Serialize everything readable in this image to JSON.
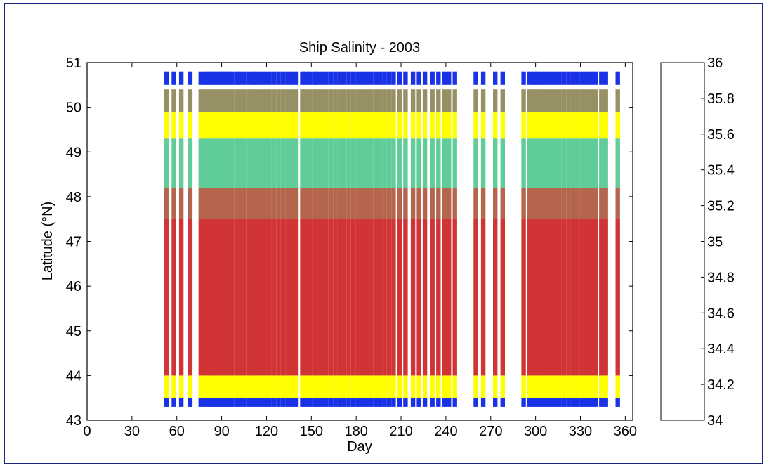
{
  "chart_data": {
    "type": "heatmap",
    "title": "Ship Salinity - 2003",
    "xlabel": "Day",
    "ylabel": "Latitude (°N)",
    "xlim": [
      0,
      365
    ],
    "ylim": [
      43,
      51
    ],
    "x_ticks": [
      "0",
      "30",
      "60",
      "90",
      "120",
      "150",
      "180",
      "210",
      "240",
      "270",
      "300",
      "330",
      "360"
    ],
    "y_ticks": [
      "43",
      "44",
      "45",
      "46",
      "47",
      "48",
      "49",
      "50",
      "51"
    ],
    "colorbar": {
      "range": [
        34,
        36
      ],
      "ticks": [
        "34",
        "34.2",
        "34.4",
        "34.6",
        "34.8",
        "35",
        "35.2",
        "35.4",
        "35.6",
        "35.8",
        "36"
      ],
      "colors": [
        "#0a14f0",
        "#1a32e6",
        "#3066d0",
        "#4a98b0",
        "#60cc98",
        "#ffff00",
        "#979064",
        "#b4654c",
        "#d03434",
        "#ff0000"
      ]
    },
    "transect_days": [
      53,
      58,
      63,
      69,
      76,
      79,
      81,
      83,
      85,
      87,
      89,
      91,
      93,
      95,
      97,
      100,
      102,
      105,
      108,
      111,
      113,
      116,
      119,
      122,
      125,
      128,
      131,
      134,
      137,
      140,
      144,
      146,
      149,
      152,
      154,
      157,
      160,
      163,
      166,
      169,
      172,
      175,
      178,
      181,
      184,
      187,
      190,
      193,
      196,
      199,
      202,
      205,
      209,
      213,
      218,
      222,
      226,
      231,
      235,
      239,
      242,
      246,
      260,
      265,
      273,
      278,
      292,
      296,
      299,
      301,
      304,
      307,
      310,
      313,
      316,
      319,
      322,
      325,
      328,
      331,
      334,
      337,
      340,
      344,
      347,
      355
    ],
    "profile_bands": [
      {
        "lat_range": [
          43.3,
          43.5
        ],
        "salinity": 34.2
      },
      {
        "lat_range": [
          43.5,
          44.0
        ],
        "salinity": 35.1
      },
      {
        "lat_range": [
          44.0,
          47.5
        ],
        "salinity": 35.7
      },
      {
        "lat_range": [
          47.5,
          48.2
        ],
        "salinity": 35.5
      },
      {
        "lat_range": [
          48.2,
          49.3
        ],
        "salinity": 34.9
      },
      {
        "lat_range": [
          49.3,
          49.9
        ],
        "salinity": 35.1
      },
      {
        "lat_range": [
          49.9,
          50.4
        ],
        "salinity": 35.3
      },
      {
        "lat_range": [
          50.5,
          50.8
        ],
        "salinity": 34.2
      }
    ]
  }
}
